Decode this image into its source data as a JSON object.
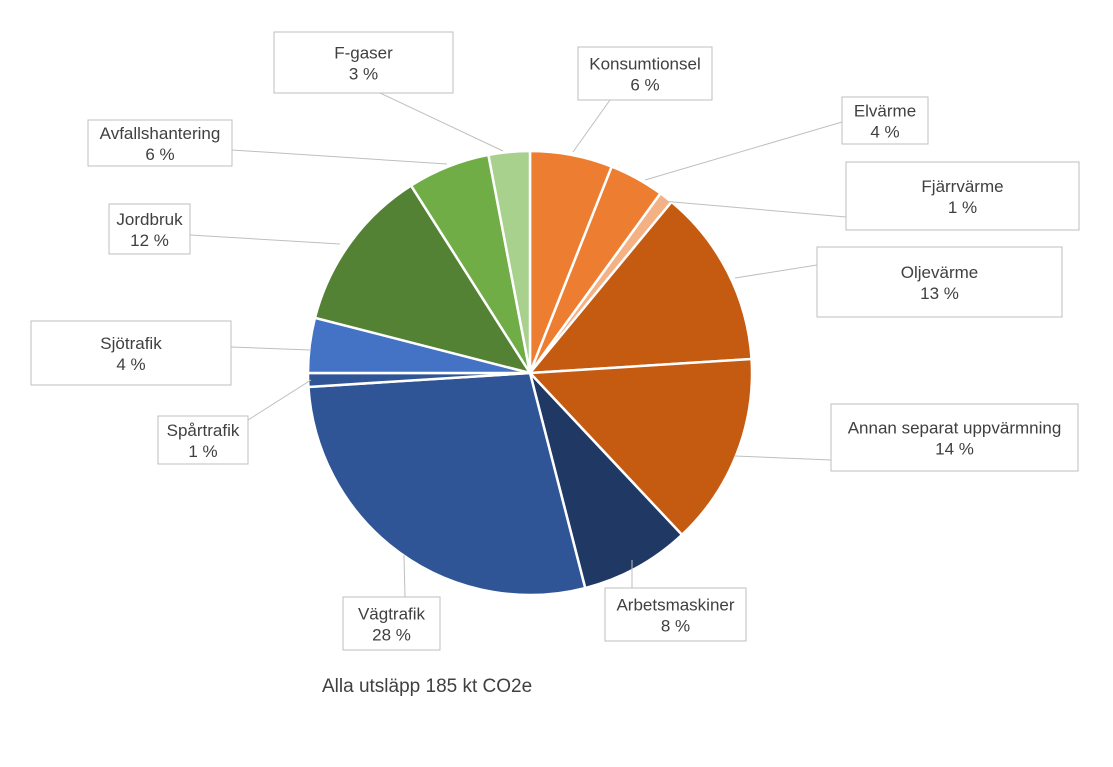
{
  "chart_data": {
    "type": "pie",
    "caption": "Alla utsläpp 185 kt CO2e",
    "slices": [
      {
        "name": "Konsumtionsel",
        "value": 6,
        "label": "6 %",
        "color": "#ED7D31"
      },
      {
        "name": "Elvärme",
        "value": 4,
        "label": "4 %",
        "color": "#ED7D31"
      },
      {
        "name": "Fjärrvärme",
        "value": 1,
        "label": "1 %",
        "color": "#F4B183"
      },
      {
        "name": "Oljevärme",
        "value": 13,
        "label": "13 %",
        "color": "#C55A11"
      },
      {
        "name": "Annan separat uppvärmning",
        "value": 14,
        "label": "14 %",
        "color": "#C55A11"
      },
      {
        "name": "Arbetsmaskiner",
        "value": 8,
        "label": "8 %",
        "color": "#203864"
      },
      {
        "name": "Vägtrafik",
        "value": 28,
        "label": "28 %",
        "color": "#2F5597"
      },
      {
        "name": "Spårtrafik",
        "value": 1,
        "label": "1 %",
        "color": "#2F5597"
      },
      {
        "name": "Sjötrafik",
        "value": 4,
        "label": "4 %",
        "color": "#4472C4"
      },
      {
        "name": "Jordbruk",
        "value": 12,
        "label": "12 %",
        "color": "#548235"
      },
      {
        "name": "Avfallshantering",
        "value": 6,
        "label": "6 %",
        "color": "#70AD47"
      },
      {
        "name": "F-gaser",
        "value": 3,
        "label": "3 %",
        "color": "#A9D18E"
      }
    ]
  }
}
